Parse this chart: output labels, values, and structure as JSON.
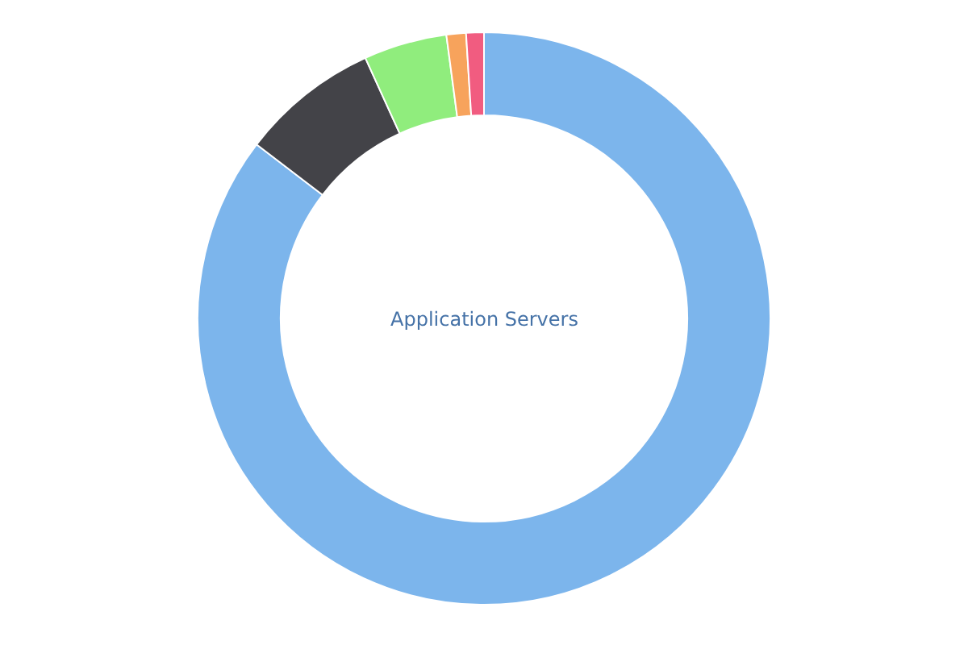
{
  "chart_data": {
    "type": "donut",
    "title": "Application Servers",
    "categories": [
      null,
      null,
      null,
      null,
      null
    ],
    "values": [
      85.4,
      7.8,
      4.7,
      1.1,
      1.0
    ],
    "colors": [
      "#7cb5ec",
      "#434348",
      "#90ed7d",
      "#f7a35c",
      "#f15c80"
    ],
    "legend": false
  }
}
